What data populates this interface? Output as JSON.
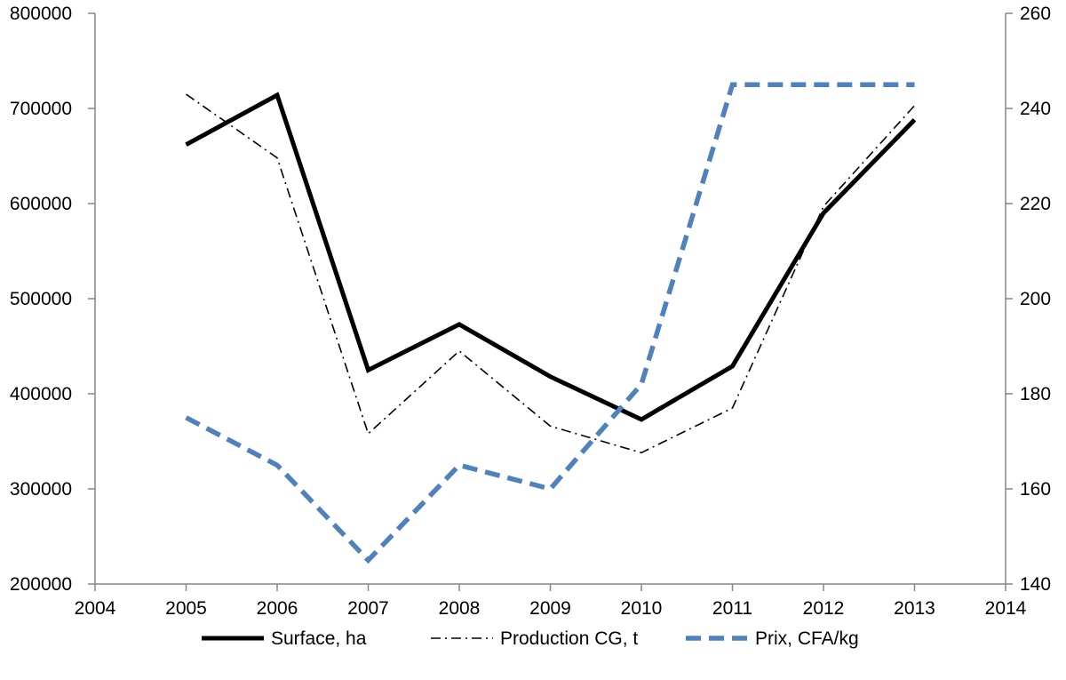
{
  "chart_data": {
    "type": "line",
    "title": "",
    "xlabel": "",
    "ylabel": "",
    "y2label": "",
    "xlim": [
      2004,
      2014
    ],
    "ylim": [
      200000,
      800000
    ],
    "y2lim": [
      140,
      260
    ],
    "x_ticks": [
      "2004",
      "2005",
      "2006",
      "2007",
      "2008",
      "2009",
      "2010",
      "2011",
      "2012",
      "2013",
      "2014"
    ],
    "y_ticks": [
      "200000",
      "300000",
      "400000",
      "500000",
      "600000",
      "700000",
      "800000"
    ],
    "y2_ticks": [
      "140",
      "160",
      "180",
      "200",
      "220",
      "240",
      "260"
    ],
    "x": [
      2005,
      2006,
      2007,
      2008,
      2009,
      2010,
      2011,
      2012,
      2013
    ],
    "series": [
      {
        "name": "Surface, ha",
        "axis": "left",
        "style": "solid",
        "color": "#000000",
        "values": [
          662000,
          714000,
          425000,
          473000,
          418000,
          373000,
          429000,
          590000,
          688000
        ]
      },
      {
        "name": "Production CG, t",
        "axis": "left",
        "style": "dashdot",
        "color": "#000000",
        "values": [
          715000,
          648000,
          358000,
          445000,
          366000,
          338000,
          385000,
          597000,
          703000
        ]
      },
      {
        "name": "Prix, CFA/kg",
        "axis": "right",
        "style": "dashed",
        "color": "#4f81bd",
        "values": [
          175,
          165,
          145,
          165,
          160,
          182,
          245,
          245,
          245
        ]
      }
    ],
    "legend_position": "bottom",
    "grid": false
  }
}
